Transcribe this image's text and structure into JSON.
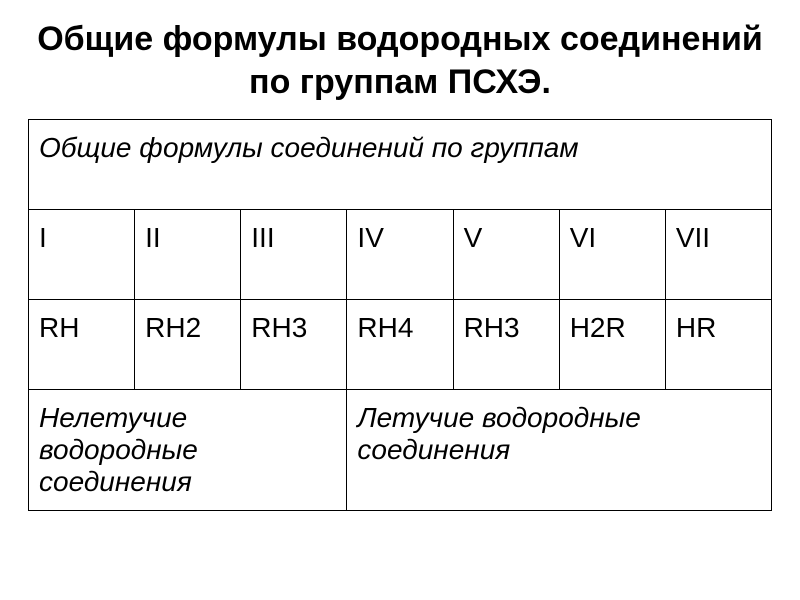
{
  "title": "Общие формулы водородных соединений по группам ПСХЭ.",
  "table": {
    "header_row_label": "Общие формулы соединений по группам",
    "groups": [
      "I",
      "II",
      "III",
      "IV",
      "V",
      "VI",
      "VII"
    ],
    "formulas": [
      "RH",
      "RH2",
      "RH3",
      "RH4",
      "RH3",
      "H2R",
      "HR"
    ],
    "bottom_left": "Нелетучие водородные соединения",
    "bottom_right": "Летучие водородные соединения"
  },
  "style": {
    "background_color": "#ffffff",
    "text_color": "#000000",
    "border_color": "#000000",
    "title_fontsize": 34,
    "cell_fontsize": 28,
    "italic_rows": [
      "header_row_label",
      "bottom_left",
      "bottom_right"
    ],
    "columns": 7,
    "bottom_left_span": 3,
    "bottom_right_span": 4
  }
}
